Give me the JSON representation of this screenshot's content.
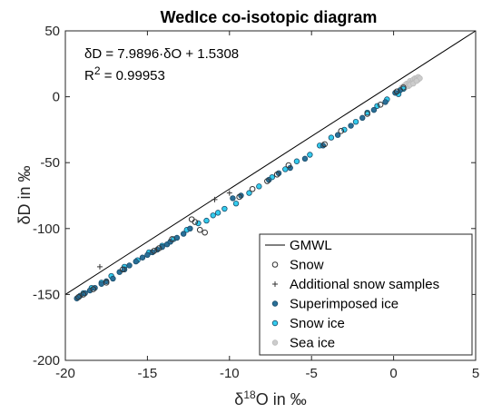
{
  "chart_data": {
    "type": "scatter",
    "title": "WedIce co-isotopic diagram",
    "xlabel": {
      "prefix": "δ",
      "sup": "18",
      "rest": "O in ‰"
    },
    "ylabel": "δD in ‰",
    "xlim": [
      -20,
      5
    ],
    "ylim": [
      -200,
      50
    ],
    "xticks": [
      -20,
      -15,
      -10,
      -5,
      0,
      5
    ],
    "yticks": [
      -200,
      -150,
      -100,
      -50,
      0,
      50
    ],
    "grid": false,
    "legend_position": "bottom-right",
    "annotation": {
      "equation": "δD = 7.9896·δO + 1.5308",
      "r2_prefix": "R",
      "r2_sup": "2",
      "r2_value": " = 0.99953"
    },
    "line": {
      "name": "GMWL",
      "slope": 8,
      "intercept": 10,
      "color": "#000000"
    },
    "series": [
      {
        "name": "Snow",
        "marker": "circle-open",
        "color": "#333333",
        "points": [
          [
            -19.2,
            -152
          ],
          [
            -18.9,
            -150
          ],
          [
            -18.3,
            -146
          ],
          [
            -17.5,
            -141
          ],
          [
            -16.5,
            -131
          ],
          [
            -14.6,
            -117
          ],
          [
            -14.3,
            -115
          ],
          [
            -13.5,
            -108
          ],
          [
            -12.3,
            -93
          ],
          [
            -12.1,
            -95
          ],
          [
            -11.8,
            -101
          ],
          [
            -11.5,
            -103
          ],
          [
            -9.4,
            -76
          ],
          [
            -8.6,
            -70
          ],
          [
            -7.7,
            -64
          ],
          [
            -7.1,
            -59
          ],
          [
            -6.4,
            -52
          ],
          [
            -4.2,
            -36
          ],
          [
            -3.2,
            -26
          ],
          [
            -1.6,
            -13
          ],
          [
            -0.8,
            -6
          ],
          [
            0.2,
            4
          ],
          [
            0.6,
            7
          ]
        ]
      },
      {
        "name": "Additional snow samples",
        "marker": "plus",
        "color": "#333333",
        "points": [
          [
            -17.9,
            -129
          ],
          [
            -10.9,
            -78
          ],
          [
            -10.0,
            -73
          ]
        ]
      },
      {
        "name": "Superimposed ice",
        "marker": "circle-filled",
        "color": "#2a6f97",
        "points": [
          [
            -19.3,
            -153
          ],
          [
            -19.1,
            -151
          ],
          [
            -18.8,
            -149
          ],
          [
            -18.5,
            -147
          ],
          [
            -18.2,
            -145
          ],
          [
            -17.8,
            -142
          ],
          [
            -17.5,
            -140
          ],
          [
            -17.1,
            -138
          ],
          [
            -16.7,
            -133
          ],
          [
            -16.4,
            -131
          ],
          [
            -16.1,
            -128
          ],
          [
            -15.7,
            -125
          ],
          [
            -15.3,
            -122
          ],
          [
            -15.0,
            -120
          ],
          [
            -14.7,
            -118
          ],
          [
            -14.4,
            -116
          ],
          [
            -14.1,
            -114
          ],
          [
            -13.8,
            -112
          ],
          [
            -13.6,
            -110
          ],
          [
            -13.2,
            -107
          ],
          [
            -12.8,
            -104
          ],
          [
            -12.4,
            -100
          ],
          [
            -9.8,
            -77
          ],
          [
            -9.3,
            -75
          ],
          [
            -7.6,
            -63
          ],
          [
            -7.0,
            -58
          ],
          [
            -6.3,
            -54
          ],
          [
            -5.4,
            -47
          ],
          [
            -4.3,
            -37
          ],
          [
            -3.4,
            -29
          ],
          [
            -2.6,
            -22
          ],
          [
            -1.9,
            -16
          ],
          [
            -1.2,
            -10
          ],
          [
            -0.5,
            -4
          ],
          [
            0.1,
            3
          ],
          [
            0.4,
            5
          ]
        ]
      },
      {
        "name": "Snow ice",
        "marker": "circle-filled",
        "color": "#33ccee",
        "points": [
          [
            -18.9,
            -149
          ],
          [
            -18.4,
            -145
          ],
          [
            -17.8,
            -141
          ],
          [
            -17.2,
            -136
          ],
          [
            -16.4,
            -129
          ],
          [
            -15.6,
            -124
          ],
          [
            -14.9,
            -118
          ],
          [
            -14.1,
            -113
          ],
          [
            -13.4,
            -108
          ],
          [
            -12.6,
            -101
          ],
          [
            -11.9,
            -96
          ],
          [
            -11.4,
            -94
          ],
          [
            -11.0,
            -90
          ],
          [
            -10.7,
            -88
          ],
          [
            -10.3,
            -85
          ],
          [
            -9.6,
            -81
          ],
          [
            -8.8,
            -73
          ],
          [
            -8.2,
            -68
          ],
          [
            -7.4,
            -61
          ],
          [
            -6.6,
            -55
          ],
          [
            -5.9,
            -49
          ],
          [
            -5.1,
            -44
          ],
          [
            -4.5,
            -37
          ],
          [
            -3.8,
            -31
          ],
          [
            -3.0,
            -25
          ],
          [
            -2.3,
            -19
          ],
          [
            -1.6,
            -12
          ],
          [
            -1.0,
            -7
          ],
          [
            -0.4,
            -2
          ],
          [
            0.3,
            2
          ],
          [
            0.6,
            6
          ]
        ]
      },
      {
        "name": "Sea ice",
        "marker": "circle-filled",
        "color": "#cccccc",
        "points": [
          [
            0.5,
            7
          ],
          [
            0.6,
            8
          ],
          [
            0.7,
            9
          ],
          [
            0.8,
            9
          ],
          [
            0.8,
            10
          ],
          [
            0.9,
            10
          ],
          [
            1.0,
            11
          ],
          [
            1.0,
            12
          ],
          [
            1.1,
            11
          ],
          [
            1.2,
            12
          ],
          [
            1.2,
            13
          ],
          [
            1.3,
            12
          ],
          [
            1.3,
            14
          ],
          [
            1.4,
            13
          ],
          [
            1.4,
            14
          ],
          [
            1.5,
            15
          ],
          [
            0.9,
            8
          ],
          [
            1.1,
            10
          ],
          [
            0.7,
            7
          ],
          [
            1.5,
            13
          ],
          [
            1.6,
            14
          ],
          [
            1.0,
            9
          ],
          [
            1.2,
            10
          ],
          [
            1.4,
            12
          ]
        ]
      }
    ]
  }
}
